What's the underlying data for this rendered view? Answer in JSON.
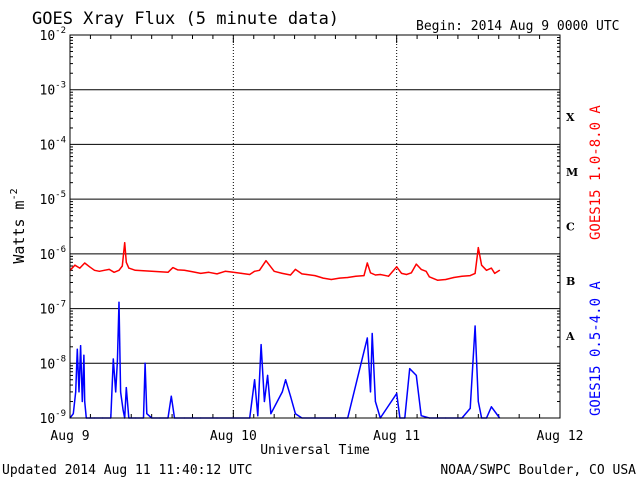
{
  "chart_data": {
    "type": "line",
    "title": "GOES Xray Flux (5 minute data)",
    "begin_label": "Begin:  2014 Aug 9 0000 UTC",
    "ylabel": "Watts m",
    "ylabel_superscript": "-2",
    "xlabel": "Universal Time",
    "yscale": "log",
    "ylim": [
      1e-09,
      0.01
    ],
    "xlim_days": [
      0,
      3
    ],
    "grid": true,
    "y_ticks": [
      {
        "exp": -2,
        "base": "10",
        "sup": "-2"
      },
      {
        "exp": -3,
        "base": "10",
        "sup": "-3"
      },
      {
        "exp": -4,
        "base": "10",
        "sup": "-4"
      },
      {
        "exp": -5,
        "base": "10",
        "sup": "-5"
      },
      {
        "exp": -6,
        "base": "10",
        "sup": "-6"
      },
      {
        "exp": -7,
        "base": "10",
        "sup": "-7"
      },
      {
        "exp": -8,
        "base": "10",
        "sup": "-8"
      },
      {
        "exp": -9,
        "base": "10",
        "sup": "-9"
      }
    ],
    "x_ticks": [
      {
        "day": 0,
        "label": "Aug 9"
      },
      {
        "day": 1,
        "label": "Aug 10"
      },
      {
        "day": 2,
        "label": "Aug 11"
      },
      {
        "day": 3,
        "label": "Aug 12"
      }
    ],
    "flare_classes": [
      {
        "label": "X",
        "exp": -3.5
      },
      {
        "label": "M",
        "exp": -4.5
      },
      {
        "label": "C",
        "exp": -5.5
      },
      {
        "label": "B",
        "exp": -6.5
      },
      {
        "label": "A",
        "exp": -7.5
      }
    ],
    "series": [
      {
        "name": "GOES15 1.0-8.0 A",
        "color": "#ff0000",
        "x_days": [
          0.0,
          0.03,
          0.06,
          0.09,
          0.12,
          0.15,
          0.18,
          0.21,
          0.24,
          0.27,
          0.3,
          0.32,
          0.335,
          0.345,
          0.36,
          0.4,
          0.45,
          0.5,
          0.55,
          0.6,
          0.63,
          0.66,
          0.7,
          0.75,
          0.8,
          0.85,
          0.9,
          0.95,
          1.0,
          1.05,
          1.1,
          1.13,
          1.16,
          1.2,
          1.25,
          1.3,
          1.35,
          1.38,
          1.42,
          1.45,
          1.5,
          1.55,
          1.6,
          1.65,
          1.7,
          1.75,
          1.8,
          1.82,
          1.84,
          1.87,
          1.9,
          1.95,
          2.0,
          2.03,
          2.06,
          2.09,
          2.12,
          2.15,
          2.18,
          2.2,
          2.25,
          2.3,
          2.35,
          2.4,
          2.45,
          2.48,
          2.5,
          2.52,
          2.55,
          2.58,
          2.6,
          2.63
        ],
        "y": [
          5e-07,
          6.2e-07,
          5.5e-07,
          6.8e-07,
          5.8e-07,
          5e-07,
          4.8e-07,
          5e-07,
          5.2e-07,
          4.6e-07,
          5e-07,
          6e-07,
          1.6e-06,
          7e-07,
          5.5e-07,
          5e-07,
          4.9e-07,
          4.8e-07,
          4.7e-07,
          4.6e-07,
          5.6e-07,
          5.1e-07,
          5e-07,
          4.7e-07,
          4.4e-07,
          4.6e-07,
          4.3e-07,
          4.8e-07,
          4.6e-07,
          4.4e-07,
          4.2e-07,
          4.8e-07,
          5e-07,
          7.5e-07,
          4.8e-07,
          4.4e-07,
          4.1e-07,
          5.2e-07,
          4.3e-07,
          4.2e-07,
          4e-07,
          3.6e-07,
          3.4e-07,
          3.6e-07,
          3.7e-07,
          3.9e-07,
          4e-07,
          6.8e-07,
          4.5e-07,
          4.1e-07,
          4.2e-07,
          3.9e-07,
          5.8e-07,
          4.4e-07,
          4.2e-07,
          4.5e-07,
          6.5e-07,
          5.2e-07,
          4.8e-07,
          3.8e-07,
          3.3e-07,
          3.4e-07,
          3.7e-07,
          3.9e-07,
          4e-07,
          4.4e-07,
          1.3e-06,
          6.2e-07,
          5e-07,
          5.5e-07,
          4.4e-07,
          5e-07
        ]
      },
      {
        "name": "GOES15 0.5-4.0 A",
        "color": "#0000ff",
        "x_days": [
          0.0,
          0.02,
          0.035,
          0.045,
          0.055,
          0.065,
          0.075,
          0.085,
          0.09,
          0.1,
          0.12,
          0.15,
          0.2,
          0.25,
          0.265,
          0.28,
          0.29,
          0.3,
          0.31,
          0.325,
          0.335,
          0.345,
          0.36,
          0.4,
          0.45,
          0.46,
          0.47,
          0.5,
          0.55,
          0.6,
          0.62,
          0.64,
          0.7,
          0.8,
          0.9,
          1.0,
          1.1,
          1.13,
          1.15,
          1.17,
          1.19,
          1.21,
          1.23,
          1.3,
          1.32,
          1.35,
          1.38,
          1.42,
          1.5,
          1.6,
          1.7,
          1.82,
          1.84,
          1.85,
          1.87,
          1.9,
          2.0,
          2.02,
          2.05,
          2.08,
          2.12,
          2.15,
          2.2,
          2.3,
          2.4,
          2.45,
          2.48,
          2.5,
          2.52,
          2.55,
          2.58,
          2.63
        ],
        "y": [
          1e-09,
          1.2e-09,
          3e-09,
          1.8e-08,
          3e-09,
          2.1e-08,
          2e-09,
          1.4e-08,
          2e-09,
          1e-09,
          1e-09,
          1e-09,
          1e-09,
          1e-09,
          1.2e-08,
          3e-09,
          1.1e-08,
          1.3e-07,
          3e-09,
          1.4e-09,
          1e-09,
          3.6e-09,
          1e-09,
          1e-09,
          1e-09,
          1e-08,
          1.2e-09,
          1e-09,
          1e-09,
          1e-09,
          2.5e-09,
          1e-09,
          1e-09,
          1e-09,
          1e-09,
          1e-09,
          1e-09,
          5e-09,
          1.1e-09,
          2.2e-08,
          2e-09,
          6e-09,
          1.2e-09,
          3e-09,
          5e-09,
          2.5e-09,
          1.2e-09,
          1e-09,
          1e-09,
          1e-09,
          1e-09,
          2.9e-08,
          3e-09,
          3.5e-08,
          2e-09,
          1e-09,
          2.8e-09,
          1e-09,
          1e-09,
          8e-09,
          6e-09,
          1.1e-09,
          1e-09,
          1e-09,
          1e-09,
          1.5e-09,
          4.8e-08,
          2e-09,
          1e-09,
          1e-09,
          1.6e-09,
          1e-09
        ]
      }
    ],
    "grid_color": "#000000"
  },
  "footer": {
    "updated": "Updated 2014 Aug 11 11:40:12 UTC",
    "credit": "NOAA/SWPC Boulder, CO USA"
  }
}
